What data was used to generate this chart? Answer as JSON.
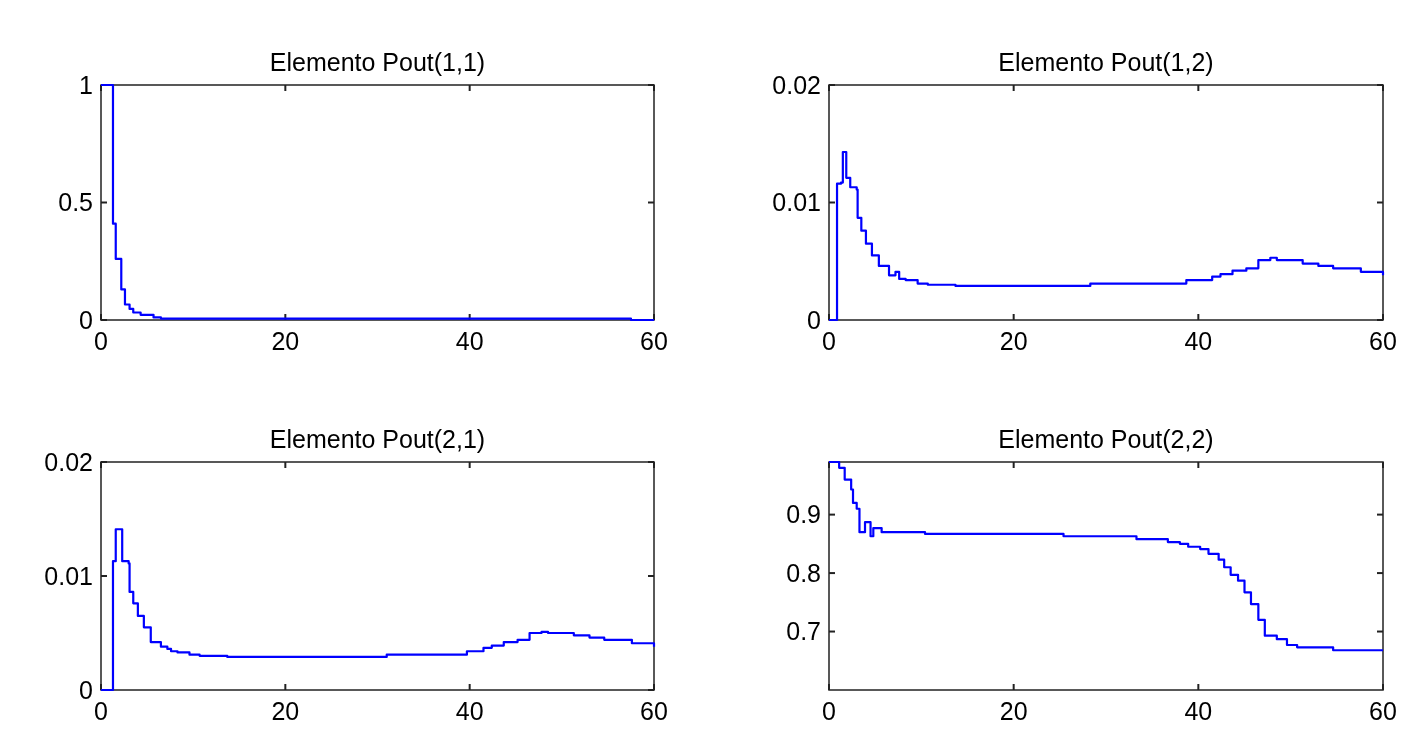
{
  "chart_data": [
    {
      "type": "step",
      "title": "Elemento Pout(1,1)",
      "xlim": [
        0,
        60
      ],
      "ylim": [
        0,
        1
      ],
      "xticks": [
        0,
        20,
        40,
        60
      ],
      "yticks": [
        0,
        0.5,
        1
      ],
      "series": [
        {
          "color": "#0000ff",
          "x": [
            0,
            1.3,
            1.6,
            2.2,
            2.6,
            3.1,
            3.5,
            4.3,
            5.7,
            6.5,
            57.5,
            60
          ],
          "values": [
            1,
            0.41,
            0.26,
            0.13,
            0.066,
            0.047,
            0.032,
            0.022,
            0.011,
            0.006,
            0,
            0
          ]
        }
      ]
    },
    {
      "type": "step",
      "title": "Elemento Pout(1,2)",
      "xlim": [
        0,
        60
      ],
      "ylim": [
        0,
        0.02
      ],
      "xticks": [
        0,
        20,
        40,
        60
      ],
      "yticks": [
        0,
        0.01,
        0.02
      ],
      "series": [
        {
          "color": "#0000ff",
          "x": [
            0,
            0.87,
            1.3,
            1.5,
            1.87,
            2.3,
            3.0,
            3.1,
            3.5,
            4.0,
            4.65,
            5.4,
            6.5,
            7.2,
            7.6,
            8.3,
            9.6,
            10.7,
            13.7,
            14.3,
            28.3,
            38.7,
            41.5,
            42.4,
            43.7,
            45.2,
            46.5,
            47.8,
            48.5,
            51.3,
            53.0,
            54.6,
            57.6,
            60
          ],
          "values": [
            0,
            0.0116,
            0.0117,
            0.0143,
            0.0121,
            0.0113,
            0.0111,
            0.0087,
            0.0076,
            0.0065,
            0.0055,
            0.0046,
            0.0038,
            0.0041,
            0.0035,
            0.0034,
            0.0031,
            0.003,
            0.0029,
            0.0029,
            0.0031,
            0.0034,
            0.0037,
            0.0039,
            0.0042,
            0.0044,
            0.0051,
            0.0053,
            0.0051,
            0.0048,
            0.0046,
            0.0044,
            0.0041,
            0.0038
          ]
        }
      ]
    },
    {
      "type": "step",
      "title": "Elemento Pout(2,1)",
      "xlim": [
        0,
        60
      ],
      "ylim": [
        0,
        0.02
      ],
      "xticks": [
        0,
        20,
        40,
        60
      ],
      "yticks": [
        0,
        0.01,
        0.02
      ],
      "series": [
        {
          "color": "#0000ff",
          "x": [
            0,
            1.3,
            1.6,
            2.3,
            3.0,
            3.1,
            3.5,
            4.0,
            4.65,
            5.4,
            6.5,
            7.2,
            7.6,
            8.3,
            9.6,
            10.7,
            13.7,
            14.3,
            31,
            39.7,
            41.5,
            42.4,
            43.7,
            45.2,
            46.5,
            47.8,
            48.5,
            51.3,
            53.0,
            54.6,
            57.6,
            60
          ],
          "values": [
            0,
            0.0113,
            0.0141,
            0.0113,
            0.0111,
            0.0086,
            0.0076,
            0.0065,
            0.0055,
            0.0042,
            0.0038,
            0.0036,
            0.0034,
            0.0033,
            0.0031,
            0.003,
            0.0029,
            0.0029,
            0.0031,
            0.0034,
            0.0037,
            0.0039,
            0.0042,
            0.0044,
            0.005,
            0.0051,
            0.005,
            0.0048,
            0.0046,
            0.0044,
            0.0041,
            0.0038
          ]
        }
      ]
    },
    {
      "type": "step",
      "title": "Elemento Pout(2,2)",
      "xlim": [
        0,
        60
      ],
      "ylim": [
        0.6,
        0.99
      ],
      "xticks": [
        0,
        20,
        40,
        60
      ],
      "yticks": [
        0.7,
        0.8,
        0.9
      ],
      "series": [
        {
          "color": "#0000ff",
          "x": [
            0,
            1.1,
            1.7,
            2.4,
            2.6,
            3.0,
            3.3,
            3.9,
            4.5,
            4.8,
            5.7,
            10.4,
            25.4,
            33.3,
            36.7,
            38,
            38.9,
            40.2,
            41.1,
            42.2,
            42.8,
            43.5,
            44.3,
            45,
            45.7,
            46.5,
            47.2,
            48.5,
            49.6,
            50.7,
            54.6,
            60
          ],
          "values": [
            0.99,
            0.98,
            0.96,
            0.943,
            0.92,
            0.91,
            0.87,
            0.887,
            0.863,
            0.877,
            0.87,
            0.867,
            0.863,
            0.858,
            0.853,
            0.85,
            0.845,
            0.841,
            0.833,
            0.823,
            0.81,
            0.797,
            0.787,
            0.767,
            0.747,
            0.72,
            0.693,
            0.687,
            0.677,
            0.673,
            0.668,
            0.668
          ]
        }
      ]
    }
  ]
}
